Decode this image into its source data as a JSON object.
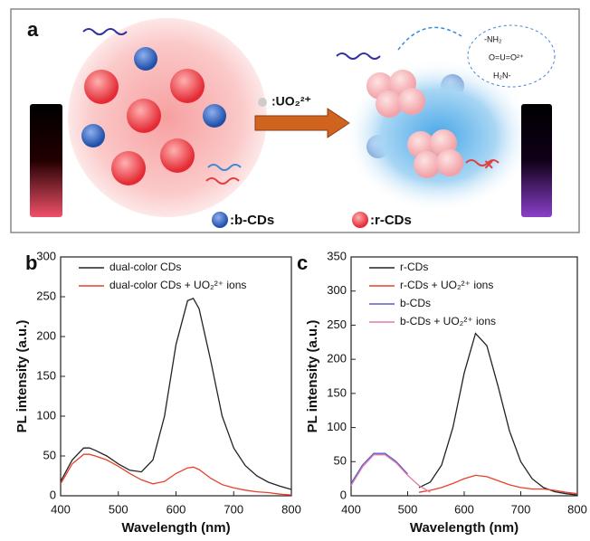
{
  "panel_a": {
    "label": "a",
    "reagent_label": ":UO₂²⁺",
    "legend": [
      ":b-CDs",
      ":r-CDs"
    ],
    "inset": [
      "-NH₂",
      "O=U=O²⁺",
      "H₂N-"
    ]
  },
  "chart_data": [
    {
      "type": "line",
      "label": "b",
      "x_label": "Wavelength (nm)",
      "y_label": "PL intensity (a.u.)",
      "xlim": [
        400,
        800
      ],
      "xticks": [
        400,
        500,
        600,
        700,
        800
      ],
      "ylim": [
        0,
        300
      ],
      "yticks": [
        0,
        50,
        100,
        150,
        200,
        250,
        300
      ],
      "legend": "upper left",
      "x": [
        400,
        420,
        440,
        450,
        460,
        480,
        500,
        520,
        540,
        560,
        580,
        600,
        620,
        630,
        640,
        660,
        680,
        700,
        720,
        740,
        760,
        780,
        800
      ],
      "series": [
        {
          "name": "dual-color CDs",
          "color": "#222222",
          "values": [
            18,
            45,
            60,
            60,
            57,
            50,
            40,
            32,
            30,
            45,
            100,
            190,
            245,
            248,
            235,
            170,
            100,
            60,
            38,
            25,
            17,
            12,
            8
          ]
        },
        {
          "name": "dual-color CDs + UO₂²⁺ ions",
          "color": "#e8402a",
          "values": [
            15,
            40,
            52,
            52,
            50,
            45,
            37,
            28,
            20,
            15,
            18,
            28,
            35,
            36,
            33,
            22,
            14,
            10,
            7,
            5,
            4,
            2,
            1
          ]
        }
      ]
    },
    {
      "type": "line",
      "label": "c",
      "x_label": "Wavelength (nm)",
      "y_label": "PL intensity (a.u.)",
      "xlim": [
        400,
        800
      ],
      "xticks": [
        400,
        500,
        600,
        700,
        800
      ],
      "ylim": [
        0,
        350
      ],
      "yticks": [
        0,
        50,
        100,
        150,
        200,
        250,
        300,
        350
      ],
      "legend": "upper left",
      "x": [
        400,
        420,
        440,
        460,
        480,
        500,
        520,
        540,
        560,
        580,
        600,
        620,
        640,
        660,
        680,
        700,
        720,
        740,
        760,
        780,
        800
      ],
      "series": [
        {
          "name": "r-CDs",
          "color": "#222222",
          "values": [
            null,
            null,
            null,
            null,
            null,
            null,
            12,
            20,
            45,
            100,
            180,
            238,
            220,
            160,
            95,
            50,
            25,
            12,
            6,
            3,
            1
          ]
        },
        {
          "name": "r-CDs + UO₂²⁺ ions",
          "color": "#e8402a",
          "values": [
            null,
            null,
            null,
            null,
            null,
            null,
            5,
            8,
            12,
            18,
            25,
            30,
            28,
            22,
            16,
            12,
            10,
            10,
            8,
            5,
            3
          ]
        },
        {
          "name": "b-CDs",
          "color": "#5a5ad0",
          "values": [
            18,
            45,
            62,
            62,
            50,
            32,
            null,
            null,
            null,
            null,
            null,
            null,
            null,
            null,
            null,
            null,
            null,
            null,
            null,
            null,
            null
          ]
        },
        {
          "name": "b-CDs + UO₂²⁺ ions",
          "color": "#e07aa8",
          "values": [
            15,
            42,
            60,
            60,
            48,
            30,
            15,
            5,
            null,
            null,
            null,
            null,
            null,
            null,
            null,
            null,
            null,
            null,
            null,
            null,
            null
          ]
        }
      ]
    }
  ]
}
